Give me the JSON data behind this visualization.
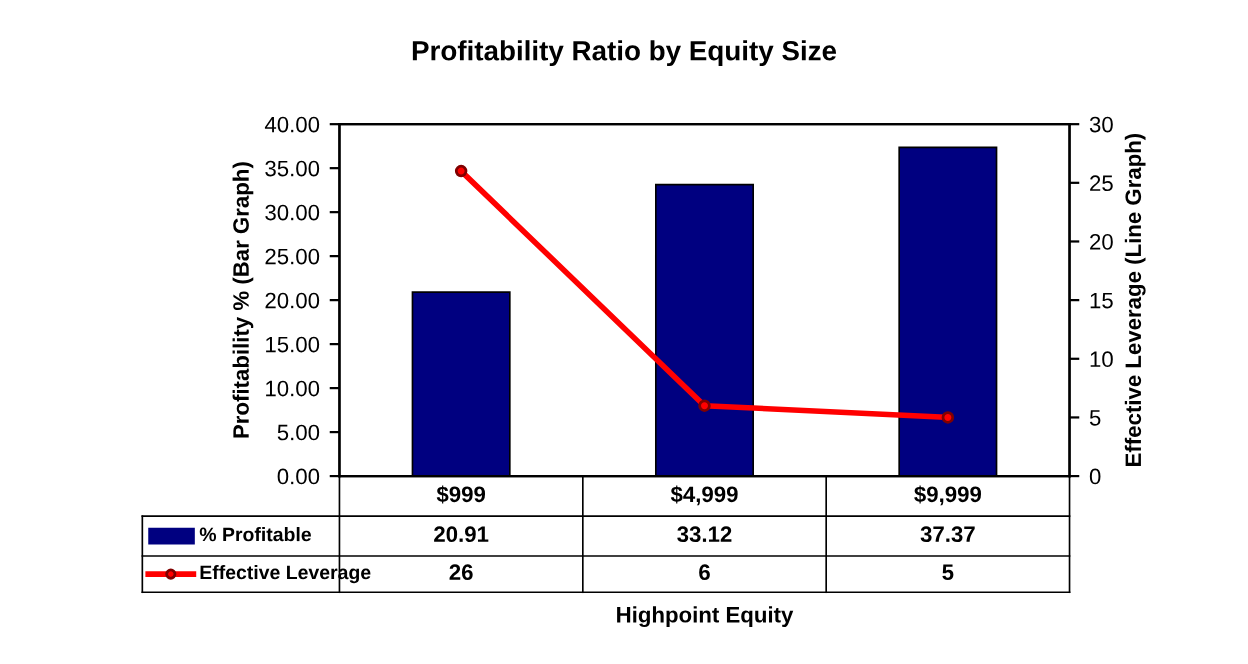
{
  "chart_data": {
    "type": "bar",
    "title": "Profitability Ratio by Equity Size",
    "categories": [
      "$999",
      "$4,999",
      "$9,999"
    ],
    "series": [
      {
        "name": "% Profitable",
        "color": "#000080",
        "values": [
          20.91,
          33.12,
          37.37
        ],
        "value_labels": [
          "20.91",
          "33.12",
          "37.37"
        ]
      },
      {
        "name": "Effective Leverage",
        "type": "line",
        "axis": "y2",
        "color": "#ff0000",
        "marker": "circle",
        "values": [
          26,
          6,
          5
        ],
        "value_labels": [
          "26",
          "6",
          "5"
        ]
      }
    ],
    "xlabel": "Highpoint Equity",
    "ylabel": "Profitability % (Bar Graph)",
    "y2label": "Effective Leverage (Line Graph)",
    "ylim": [
      0,
      40
    ],
    "yticks": [
      {
        "value": 0,
        "label": "0.00"
      },
      {
        "value": 5,
        "label": "5.00"
      },
      {
        "value": 10,
        "label": "10.00"
      },
      {
        "value": 15,
        "label": "15.00"
      },
      {
        "value": 20,
        "label": "20.00"
      },
      {
        "value": 25,
        "label": "25.00"
      },
      {
        "value": 30,
        "label": "30.00"
      },
      {
        "value": 35,
        "label": "35.00"
      },
      {
        "value": 40,
        "label": "40.00"
      }
    ],
    "y2lim": [
      0,
      30
    ],
    "y2ticks": [
      0,
      5,
      10,
      15,
      20,
      25,
      30
    ],
    "legend": "bottom",
    "grid": false
  }
}
